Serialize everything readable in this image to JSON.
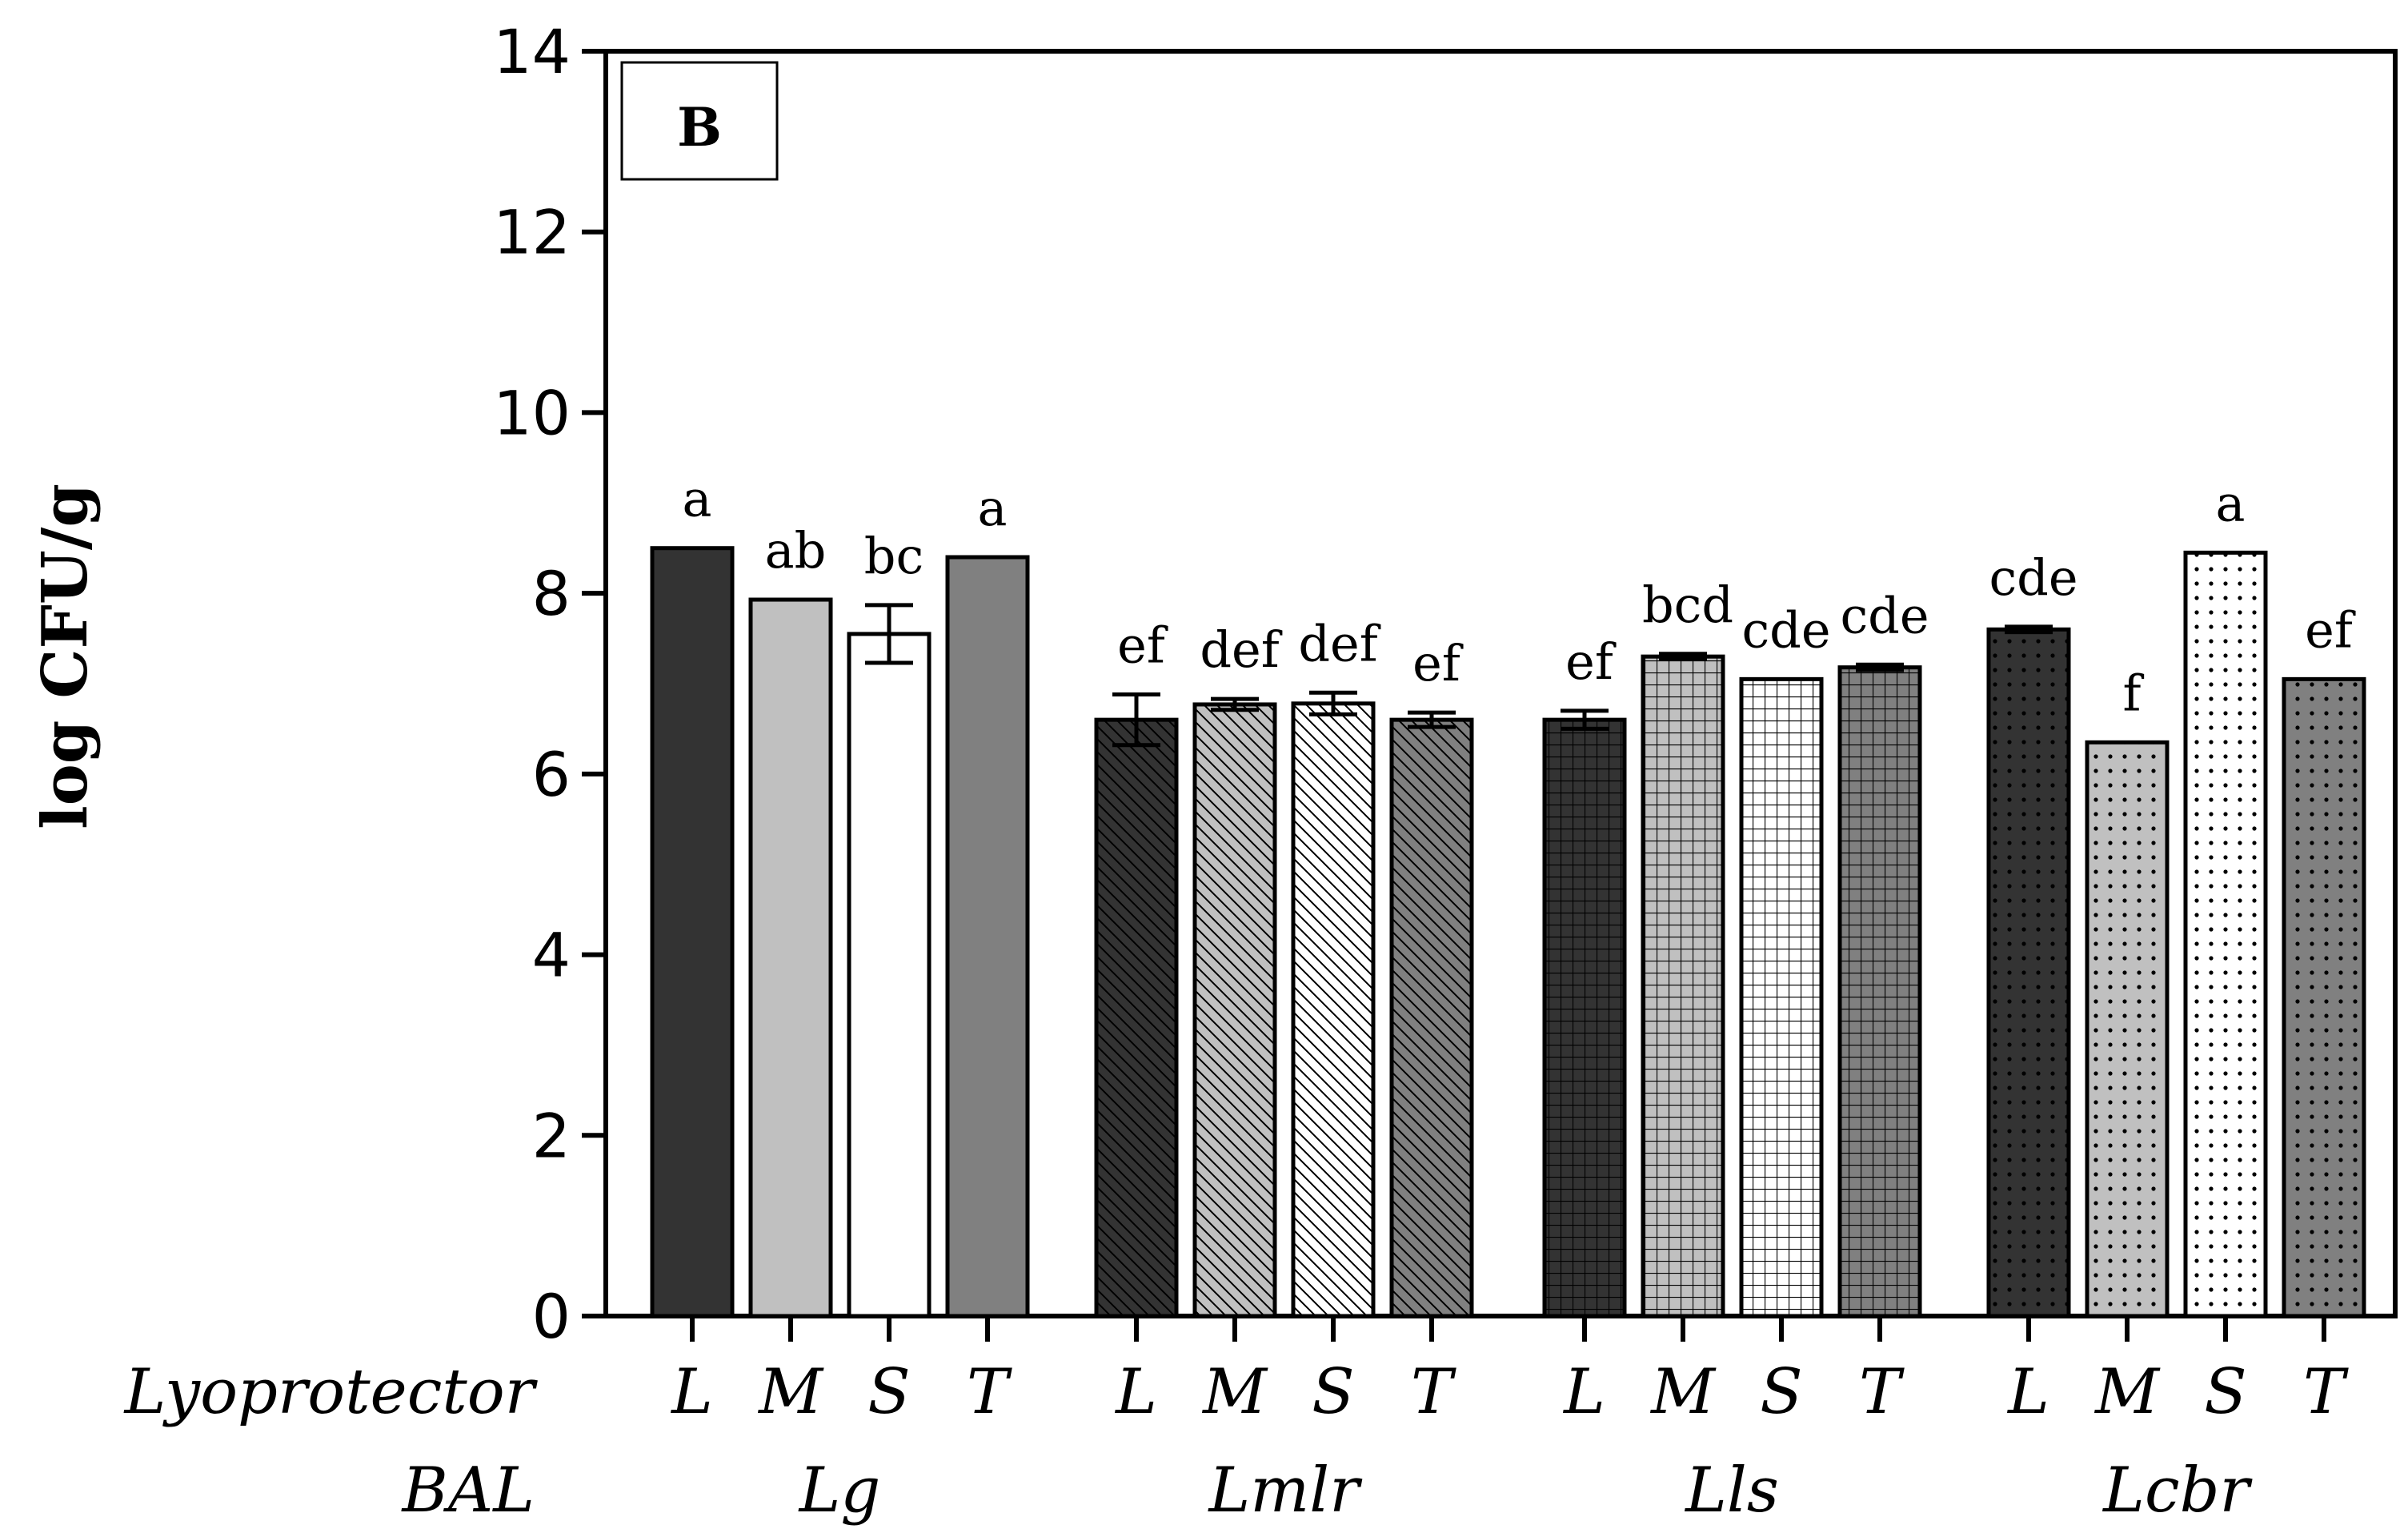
{
  "chart_data": {
    "type": "bar",
    "panel_label": "B",
    "ylabel": "log CFU/g",
    "ylim": [
      0,
      14
    ],
    "yticks": [
      "0",
      "2",
      "4",
      "6",
      "8",
      "10",
      "12",
      "14"
    ],
    "row_labels": {
      "lyoprotector": "Lyoprotector",
      "bal": "BAL"
    },
    "groups": [
      {
        "name": "Lg",
        "pattern": "solid",
        "bars": [
          {
            "lyoprotector": "L",
            "value": 8.5,
            "error": 0,
            "letters": "a",
            "fill": "#333333"
          },
          {
            "lyoprotector": "M",
            "value": 7.93,
            "error": 0,
            "letters": "ab",
            "fill": "#c0c0c0"
          },
          {
            "lyoprotector": "S",
            "value": 7.55,
            "error": 0.32,
            "letters": "bc",
            "fill": "#ffffff"
          },
          {
            "lyoprotector": "T",
            "value": 8.4,
            "error": 0,
            "letters": "a",
            "fill": "#808080"
          }
        ]
      },
      {
        "name": "Lmlr",
        "pattern": "diagonal",
        "bars": [
          {
            "lyoprotector": "L",
            "value": 6.6,
            "error": 0.28,
            "letters": "ef",
            "fill": "#333333"
          },
          {
            "lyoprotector": "M",
            "value": 6.77,
            "error": 0.06,
            "letters": "def",
            "fill": "#c0c0c0"
          },
          {
            "lyoprotector": "S",
            "value": 6.78,
            "error": 0.12,
            "letters": "def",
            "fill": "#ffffff"
          },
          {
            "lyoprotector": "T",
            "value": 6.6,
            "error": 0.08,
            "letters": "ef",
            "fill": "#808080"
          }
        ]
      },
      {
        "name": "Lls",
        "pattern": "grid",
        "bars": [
          {
            "lyoprotector": "L",
            "value": 6.6,
            "error": 0.1,
            "letters": "ef",
            "fill": "#333333"
          },
          {
            "lyoprotector": "M",
            "value": 7.3,
            "error": 0.03,
            "letters": "bcd",
            "fill": "#c0c0c0"
          },
          {
            "lyoprotector": "S",
            "value": 7.05,
            "error": 0,
            "letters": "cde",
            "fill": "#ffffff"
          },
          {
            "lyoprotector": "T",
            "value": 7.18,
            "error": 0.03,
            "letters": "cde",
            "fill": "#808080"
          }
        ]
      },
      {
        "name": "Lcbr",
        "pattern": "dots",
        "bars": [
          {
            "lyoprotector": "L",
            "value": 7.6,
            "error": 0.03,
            "letters": "cde",
            "fill": "#333333"
          },
          {
            "lyoprotector": "M",
            "value": 6.35,
            "error": 0,
            "letters": "f",
            "fill": "#c0c0c0"
          },
          {
            "lyoprotector": "S",
            "value": 8.45,
            "error": 0,
            "letters": "a",
            "fill": "#ffffff"
          },
          {
            "lyoprotector": "T",
            "value": 7.05,
            "error": 0,
            "letters": "ef",
            "fill": "#808080"
          }
        ]
      }
    ]
  }
}
